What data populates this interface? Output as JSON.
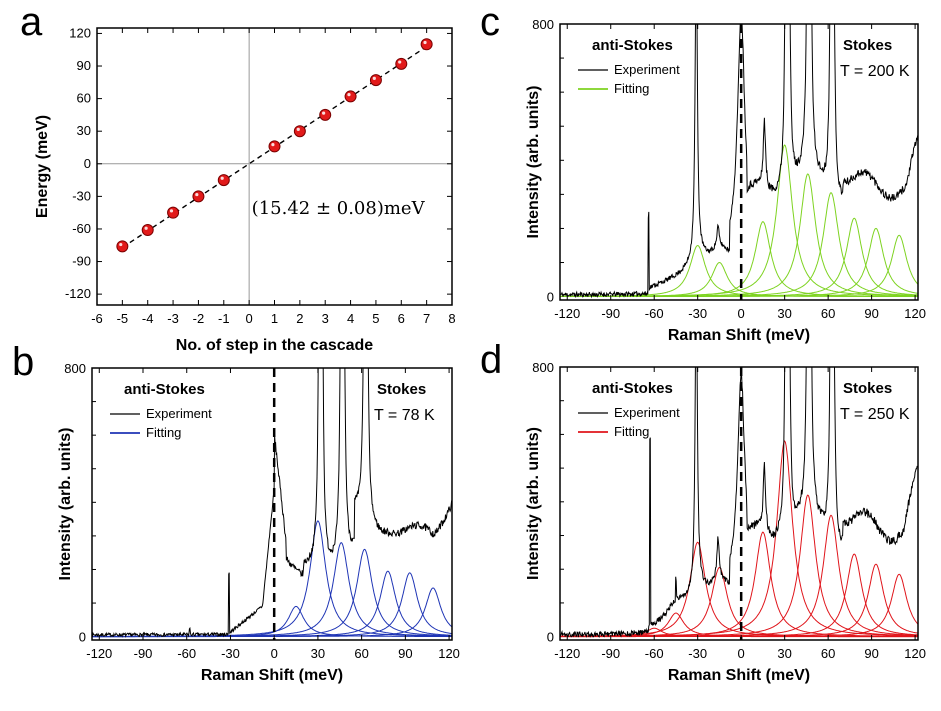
{
  "figure": {
    "panel_labels": [
      "a",
      "b",
      "c",
      "d"
    ]
  },
  "chart_data": [
    {
      "id": "a",
      "type": "scatter",
      "xlabel": "No. of step in the cascade",
      "ylabel": "Energy (meV)",
      "xlim": [
        -6,
        8
      ],
      "ylim": [
        -130,
        125
      ],
      "xticks": [
        -6,
        -5,
        -4,
        -3,
        -2,
        -1,
        0,
        1,
        2,
        3,
        4,
        5,
        6,
        7,
        8
      ],
      "yticks": [
        -120,
        -90,
        -60,
        -30,
        0,
        30,
        60,
        90,
        120
      ],
      "x": [
        -5,
        -4,
        -3,
        -2,
        -1,
        1,
        2,
        3,
        4,
        5,
        6,
        7
      ],
      "y": [
        -76,
        -61,
        -45,
        -30,
        -15,
        16,
        30,
        45,
        62,
        77,
        92,
        110
      ],
      "fit_line": {
        "x": [
          -5,
          7
        ],
        "y": [
          -77.1,
          107.9
        ]
      },
      "annotation": "(15.42 ± 0.08)meV",
      "marker_color": "#e21a1a"
    },
    {
      "id": "b",
      "type": "line",
      "xlabel": "Raman Shift (meV)",
      "ylabel": "Intensity (arb. units)",
      "xlim": [
        -125,
        122
      ],
      "ylim": [
        -10,
        800
      ],
      "xticks": [
        -120,
        -90,
        -60,
        -30,
        0,
        30,
        60,
        90,
        120
      ],
      "yticks": [
        0,
        800
      ],
      "series": [
        {
          "name": "Experiment",
          "color": "#000000"
        },
        {
          "name": "Fitting",
          "color": "#1f35b5"
        }
      ],
      "annotations": {
        "left": "anti-Stokes",
        "right": "Stokes",
        "temperature": "T = 78 K"
      },
      "fit_peaks": [
        {
          "center": 15,
          "amplitude": 90
        },
        {
          "center": 30,
          "amplitude": 345
        },
        {
          "center": 46,
          "amplitude": 280
        },
        {
          "center": 62,
          "amplitude": 260
        },
        {
          "center": 78,
          "amplitude": 195
        },
        {
          "center": 93,
          "amplitude": 190
        },
        {
          "center": 109,
          "amplitude": 145
        }
      ]
    },
    {
      "id": "c",
      "type": "line",
      "xlabel": "Raman Shift (meV)",
      "ylabel": "Intensity (arb. units)",
      "xlim": [
        -125,
        122
      ],
      "ylim": [
        -10,
        800
      ],
      "xticks": [
        -120,
        -90,
        -60,
        -30,
        0,
        30,
        60,
        90,
        120
      ],
      "yticks": [
        0,
        800
      ],
      "series": [
        {
          "name": "Experiment",
          "color": "#000000"
        },
        {
          "name": "Fitting",
          "color": "#7ed321"
        }
      ],
      "annotations": {
        "left": "anti-Stokes",
        "right": "Stokes",
        "temperature": "T = 200 K"
      },
      "fit_peaks": [
        {
          "center": -30,
          "amplitude": 150
        },
        {
          "center": -15,
          "amplitude": 100
        },
        {
          "center": 15,
          "amplitude": 220
        },
        {
          "center": 30,
          "amplitude": 445
        },
        {
          "center": 46,
          "amplitude": 360
        },
        {
          "center": 62,
          "amplitude": 305
        },
        {
          "center": 78,
          "amplitude": 230
        },
        {
          "center": 93,
          "amplitude": 200
        },
        {
          "center": 109,
          "amplitude": 180
        }
      ]
    },
    {
      "id": "d",
      "type": "line",
      "xlabel": "Raman Shift (meV)",
      "ylabel": "Intensity (arb. units)",
      "xlim": [
        -125,
        122
      ],
      "ylim": [
        -10,
        800
      ],
      "xticks": [
        -120,
        -90,
        -60,
        -30,
        0,
        30,
        60,
        90,
        120
      ],
      "yticks": [
        0,
        800
      ],
      "series": [
        {
          "name": "Experiment",
          "color": "#000000"
        },
        {
          "name": "Fitting",
          "color": "#e0151b"
        }
      ],
      "annotations": {
        "left": "anti-Stokes",
        "right": "Stokes",
        "temperature": "T = 250 K"
      },
      "fit_peaks": [
        {
          "center": -60,
          "amplitude": 25
        },
        {
          "center": -45,
          "amplitude": 70
        },
        {
          "center": -30,
          "amplitude": 280
        },
        {
          "center": -15,
          "amplitude": 205
        },
        {
          "center": 15,
          "amplitude": 310
        },
        {
          "center": 30,
          "amplitude": 580
        },
        {
          "center": 46,
          "amplitude": 420
        },
        {
          "center": 62,
          "amplitude": 360
        },
        {
          "center": 78,
          "amplitude": 245
        },
        {
          "center": 93,
          "amplitude": 215
        },
        {
          "center": 109,
          "amplitude": 185
        }
      ]
    }
  ]
}
